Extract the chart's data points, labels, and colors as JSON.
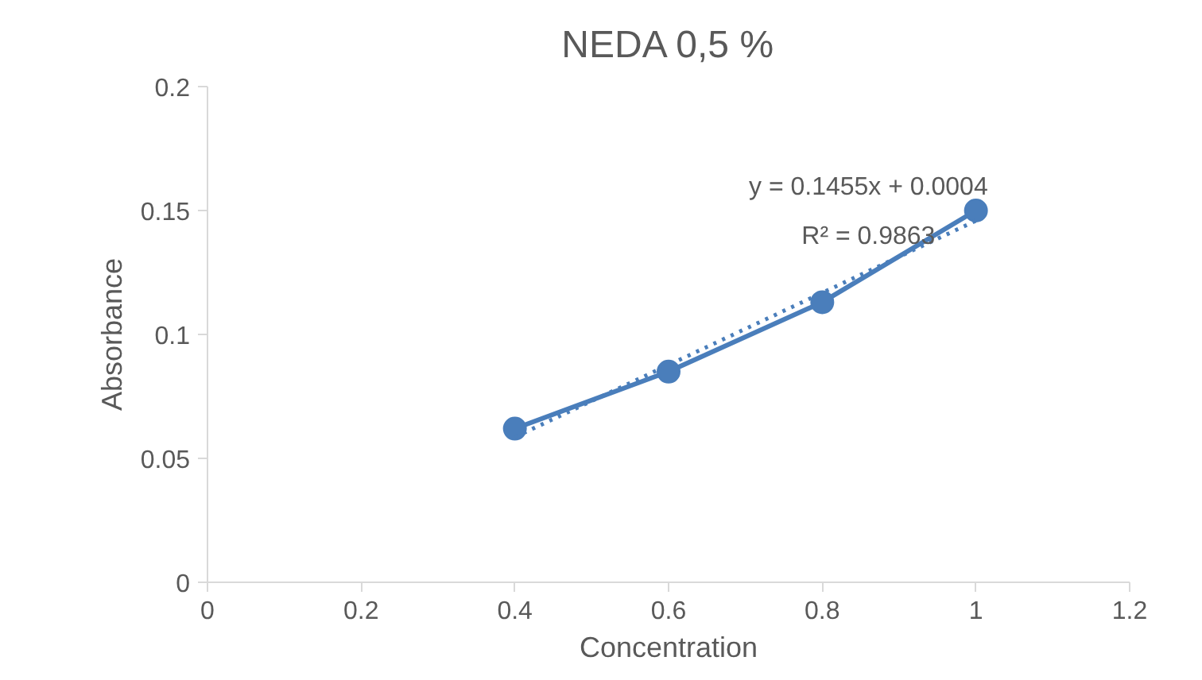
{
  "chart_data": {
    "type": "line",
    "title": "NEDA 0,5 %",
    "xlabel": "Concentration",
    "ylabel": "Absorbance",
    "x": [
      0.4,
      0.6,
      0.8,
      1.0
    ],
    "series": [
      {
        "color": "#4a7ebb",
        "values": [
          0.062,
          0.085,
          0.113,
          0.15
        ],
        "marker": "circle",
        "line_style": "solid"
      },
      {
        "type": "line",
        "color": "#4a7ebb",
        "x": [
          0.4,
          1.0
        ],
        "values": [
          0.0586,
          0.1459
        ],
        "marker": "none",
        "line_style": "dotted"
      }
    ],
    "annotations": [
      "y = 0.1455x + 0.0004",
      "R² = 0.9863"
    ],
    "xlim": [
      0,
      1.2
    ],
    "xticks": [
      0,
      0.2,
      0.4,
      0.6,
      0.8,
      1,
      1.2
    ],
    "ylim": [
      0,
      0.2
    ],
    "yticks": [
      0,
      0.05,
      0.1,
      0.15,
      0.2
    ],
    "grid": false
  }
}
